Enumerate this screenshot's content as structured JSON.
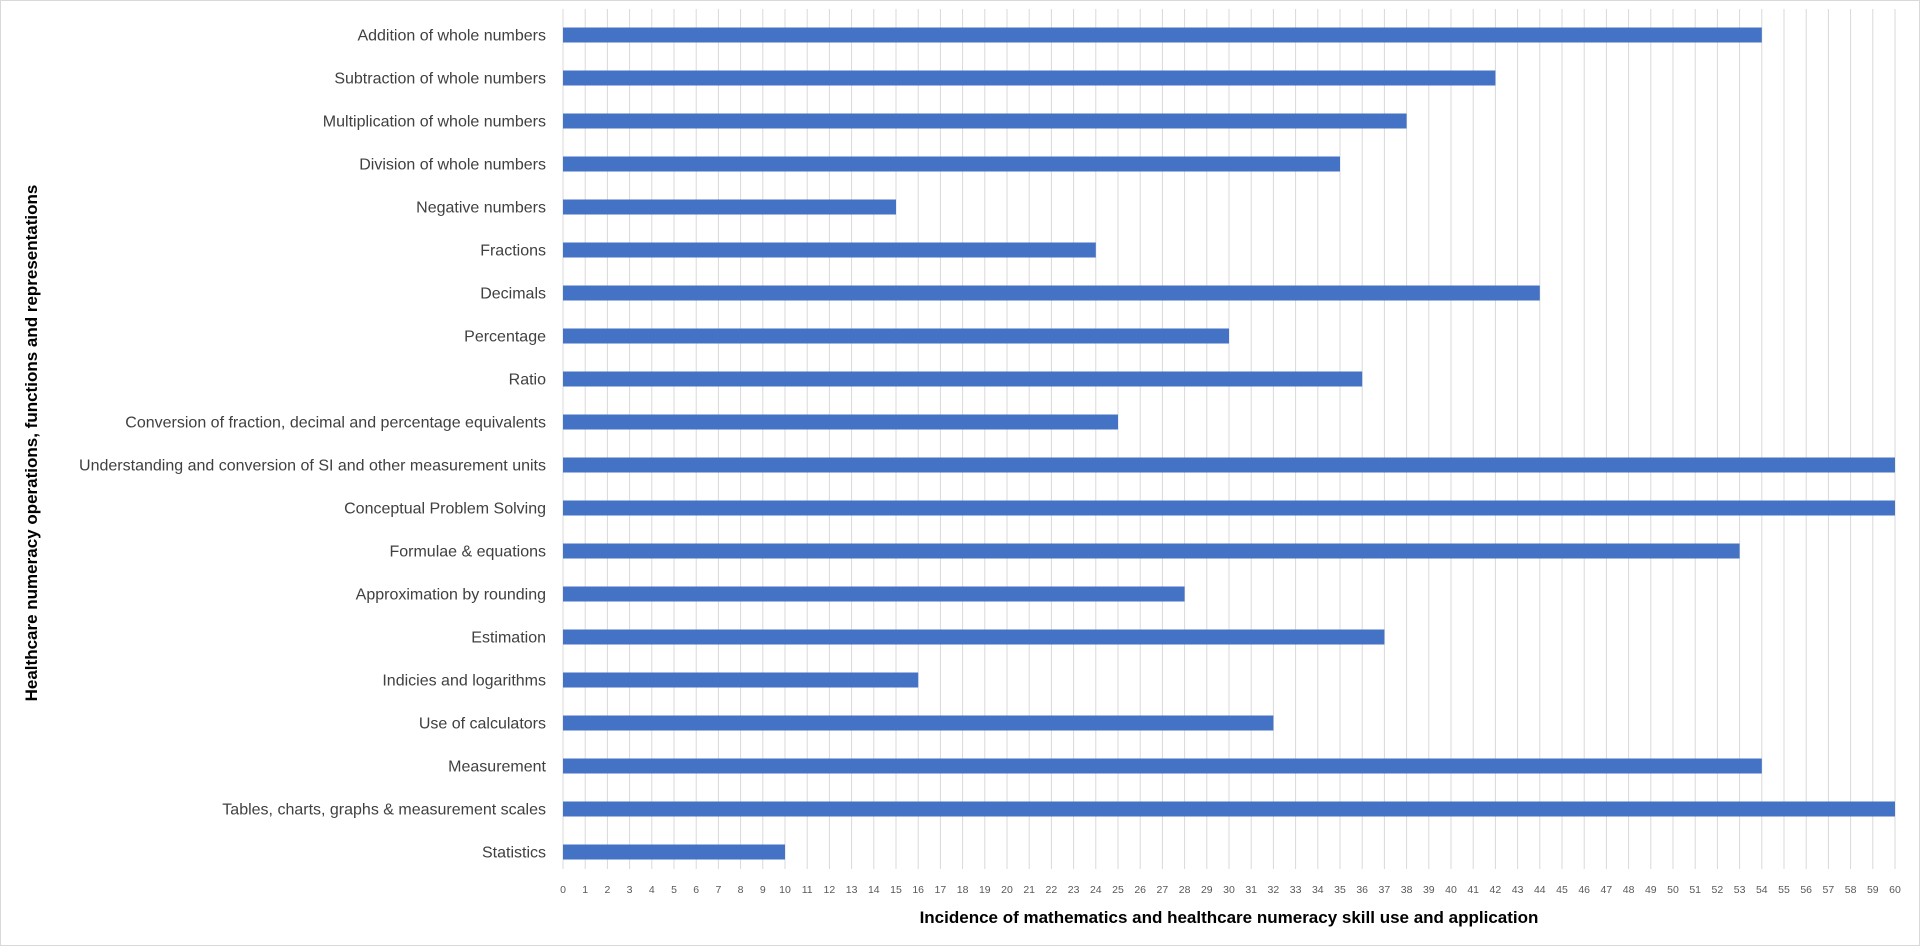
{
  "chart_data": {
    "type": "bar",
    "orientation": "horizontal",
    "categories": [
      "Addition of whole numbers",
      "Subtraction of whole numbers",
      "Multiplication of whole numbers",
      "Division of whole numbers",
      "Negative numbers",
      "Fractions",
      "Decimals",
      "Percentage",
      "Ratio",
      "Conversion of fraction, decimal and percentage equivalents",
      "Understanding and conversion of SI and other measurement units",
      "Conceptual Problem Solving",
      "Formulae & equations",
      "Approximation by rounding",
      "Estimation",
      "Indicies and logarithms",
      "Use of calculators",
      "Measurement",
      "Tables, charts, graphs & measurement scales",
      "Statistics"
    ],
    "values": [
      54,
      42,
      38,
      35,
      15,
      24,
      44,
      30,
      36,
      25,
      60,
      60,
      53,
      28,
      37,
      16,
      32,
      54,
      60,
      10
    ],
    "xlabel": "Incidence of mathematics and healthcare numeracy skill use and application",
    "ylabel": "Healthcare numeracy operations, functions and representations",
    "xlim": [
      0,
      60
    ],
    "xticks_step": 1,
    "grid": "vertical",
    "legend": "none",
    "colors": {
      "bar": "#4472c4",
      "grid": "#d9d9d9",
      "text": "#404040"
    }
  }
}
